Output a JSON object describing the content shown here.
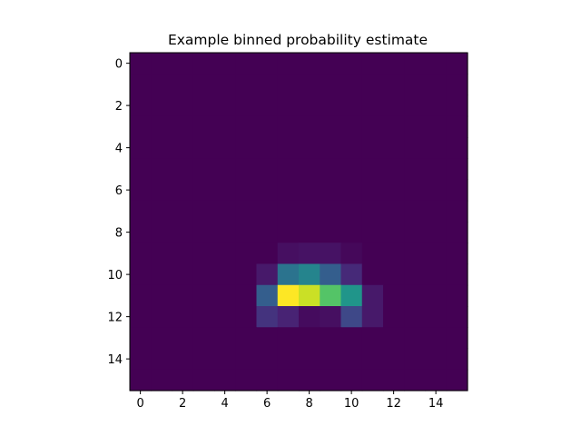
{
  "chart_data": {
    "type": "heatmap",
    "title": "Example binned probability estimate",
    "xlabel": "",
    "ylabel": "",
    "colormap": "viridis",
    "grid": false,
    "n_rows": 16,
    "n_cols": 16,
    "x_ticks": [
      0,
      2,
      4,
      6,
      8,
      10,
      12,
      14
    ],
    "y_ticks": [
      0,
      2,
      4,
      6,
      8,
      10,
      12,
      14
    ],
    "xlim": [
      -0.5,
      15.5
    ],
    "ylim": [
      15.5,
      -0.5
    ],
    "value_range": [
      0,
      1
    ],
    "values": [
      [
        0,
        0,
        0,
        0,
        0,
        0,
        0,
        0,
        0,
        0,
        0,
        0,
        0,
        0,
        0,
        0
      ],
      [
        0,
        0,
        0,
        0,
        0,
        0,
        0,
        0,
        0,
        0,
        0,
        0,
        0,
        0,
        0,
        0
      ],
      [
        0,
        0,
        0,
        0,
        0,
        0,
        0,
        0,
        0,
        0,
        0,
        0,
        0,
        0,
        0,
        0
      ],
      [
        0,
        0,
        0,
        0,
        0,
        0,
        0,
        0,
        0,
        0,
        0,
        0,
        0,
        0,
        0,
        0
      ],
      [
        0,
        0,
        0,
        0,
        0,
        0,
        0,
        0,
        0,
        0,
        0,
        0,
        0,
        0,
        0,
        0
      ],
      [
        0,
        0,
        0,
        0,
        0,
        0,
        0,
        0,
        0,
        0,
        0,
        0,
        0,
        0,
        0,
        0
      ],
      [
        0,
        0,
        0,
        0,
        0,
        0,
        0,
        0,
        0,
        0,
        0,
        0,
        0,
        0,
        0,
        0
      ],
      [
        0,
        0,
        0,
        0,
        0,
        0,
        0,
        0,
        0,
        0,
        0,
        0,
        0,
        0,
        0,
        0
      ],
      [
        0,
        0,
        0,
        0,
        0,
        0,
        0,
        0,
        0,
        0,
        0,
        0,
        0,
        0,
        0,
        0
      ],
      [
        0,
        0,
        0,
        0,
        0,
        0,
        0,
        0.04,
        0.05,
        0.05,
        0.02,
        0,
        0,
        0,
        0,
        0
      ],
      [
        0,
        0,
        0,
        0,
        0,
        0,
        0.07,
        0.38,
        0.45,
        0.3,
        0.12,
        0,
        0,
        0,
        0,
        0
      ],
      [
        0,
        0,
        0,
        0,
        0,
        0,
        0.3,
        1.0,
        0.92,
        0.73,
        0.52,
        0.07,
        0,
        0,
        0,
        0
      ],
      [
        0,
        0,
        0,
        0,
        0,
        0,
        0.15,
        0.1,
        0.03,
        0.04,
        0.22,
        0.07,
        0,
        0,
        0,
        0
      ],
      [
        0,
        0,
        0,
        0,
        0,
        0,
        0,
        0,
        0,
        0,
        0,
        0,
        0,
        0,
        0,
        0
      ],
      [
        0,
        0,
        0,
        0,
        0,
        0,
        0,
        0,
        0,
        0,
        0,
        0,
        0,
        0,
        0,
        0
      ],
      [
        0,
        0,
        0,
        0,
        0,
        0,
        0,
        0,
        0,
        0,
        0,
        0,
        0,
        0,
        0,
        0
      ]
    ]
  }
}
